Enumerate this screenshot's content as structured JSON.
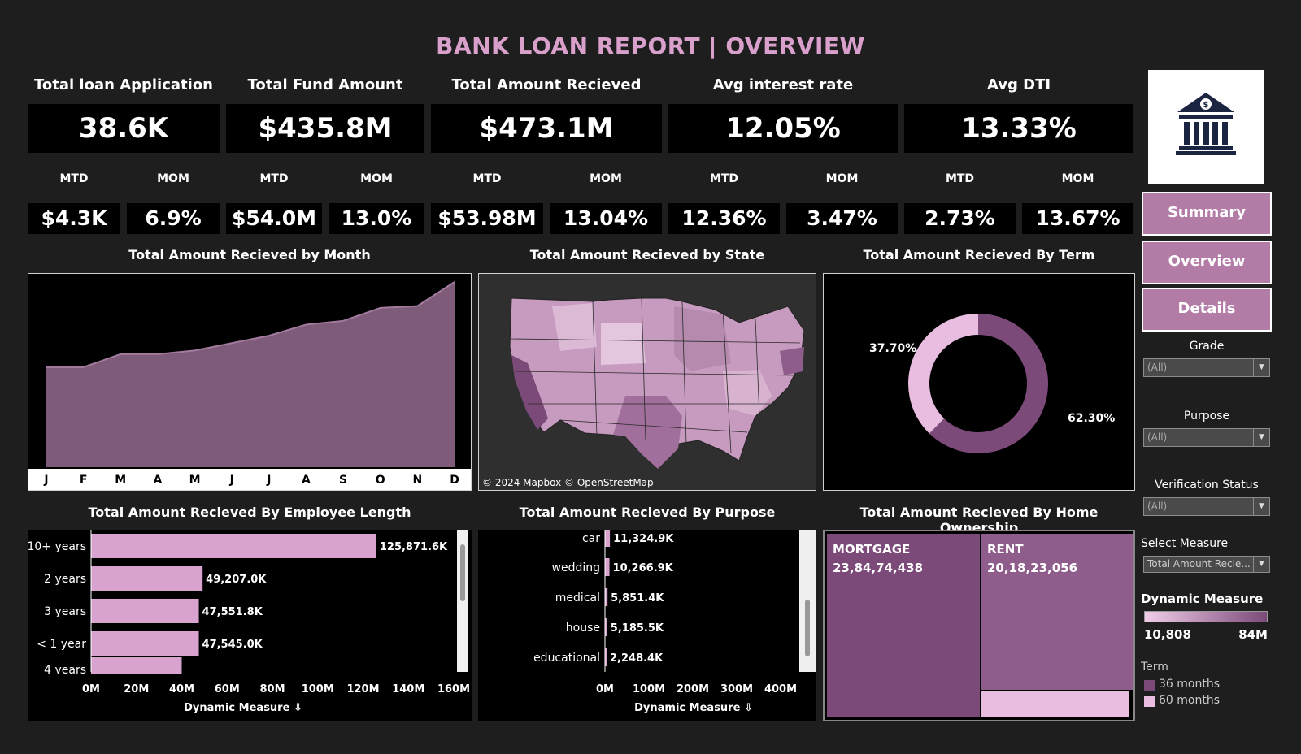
{
  "title": "BANK LOAN REPORT | OVERVIEW",
  "kpis": [
    {
      "label": "Total loan Application",
      "value": "38.6K",
      "mtd_label": "MTD",
      "mtd": "$4.3K",
      "mom_label": "MOM",
      "mom": "6.9%"
    },
    {
      "label": "Total Fund Amount",
      "value": "$435.8M",
      "mtd_label": "MTD",
      "mtd": "$54.0M",
      "mom_label": "MOM",
      "mom": "13.0%"
    },
    {
      "label": "Total Amount Recieved",
      "value": "$473.1M",
      "mtd_label": "MTD",
      "mtd": "$53.98M",
      "mom_label": "MOM",
      "mom": "13.04%"
    },
    {
      "label": "Avg interest rate",
      "value": "12.05%",
      "mtd_label": "MTD",
      "mtd": "12.36%",
      "mom_label": "MOM",
      "mom": "3.47%"
    },
    {
      "label": "Avg DTI",
      "value": "13.33%",
      "mtd_label": "MTD",
      "mtd": "2.73%",
      "mom_label": "MOM",
      "mom": "13.67%"
    }
  ],
  "logo_icon": "bank-icon",
  "nav": {
    "summary": "Summary",
    "overview": "Overview",
    "details": "Details"
  },
  "filters": {
    "grade": {
      "label": "Grade",
      "value": "(All)"
    },
    "purpose": {
      "label": "Purpose",
      "value": "(All)"
    },
    "verification": {
      "label": "Verification Status",
      "value": "(All)"
    },
    "measure": {
      "label": "Select Measure",
      "value": "Total Amount Recie..."
    }
  },
  "legend": {
    "dynamic_title": "Dynamic Measure",
    "min": "10,808",
    "max": "84M",
    "term_title": "Term",
    "term_36": "36 months",
    "term_60": "60 months",
    "color_36": "#7b4a79",
    "color_60": "#e8bde0"
  },
  "panels": {
    "month_title": "Total Amount Recieved by Month",
    "state_title": "Total Amount Recieved by State",
    "state_credit": "© 2024 Mapbox © OpenStreetMap",
    "term_title": "Total Amount Recieved By Term",
    "emp_title": "Total Amount Recieved By Employee Length",
    "purpose_title": "Total Amount Recieved By Purpose",
    "home_title": "Total Amount Recieved By Home Ownership",
    "dynamic_axis": "Dynamic Measure"
  },
  "chart_data": [
    {
      "type": "area",
      "title": "Total Amount Recieved by Month",
      "categories": [
        "J",
        "F",
        "M",
        "A",
        "M",
        "J",
        "J",
        "A",
        "S",
        "O",
        "N",
        "D"
      ],
      "values": [
        0.54,
        0.54,
        0.61,
        0.61,
        0.63,
        0.67,
        0.71,
        0.77,
        0.79,
        0.86,
        0.87,
        1.0
      ],
      "color": "#7d5b79"
    },
    {
      "type": "pie",
      "title": "Total Amount Recieved By Term",
      "slices": [
        {
          "label": "62.30%",
          "value": 62.3,
          "color": "#7b4a79"
        },
        {
          "label": "37.70%",
          "value": 37.7,
          "color": "#e8bde0"
        }
      ]
    },
    {
      "type": "bar",
      "title": "Total Amount Recieved By Employee Length",
      "categories": [
        "10+ years",
        "2 years",
        "3 years",
        "< 1 year",
        "4 years"
      ],
      "values": [
        125871.6,
        49207.0,
        47551.8,
        47545.0,
        40000
      ],
      "labels": [
        "125,871.6K",
        "49,207.0K",
        "47,551.8K",
        "47,545.0K",
        ""
      ],
      "xticks": [
        "0M",
        "20M",
        "40M",
        "60M",
        "80M",
        "100M",
        "120M",
        "140M",
        "160M"
      ],
      "xlim": [
        0,
        160000
      ],
      "xlabel": "Dynamic Measure"
    },
    {
      "type": "bar",
      "title": "Total Amount Recieved By Purpose",
      "categories": [
        "car",
        "wedding",
        "medical",
        "house",
        "educational"
      ],
      "values": [
        11324.9,
        10266.9,
        5851.4,
        5185.5,
        2248.4
      ],
      "labels": [
        "11,324.9K",
        "10,266.9K",
        "5,851.4K",
        "5,185.5K",
        "2,248.4K"
      ],
      "xticks": [
        "0M",
        "100M",
        "200M",
        "300M",
        "400M"
      ],
      "xlim": [
        0,
        430000
      ],
      "xlabel": "Dynamic Measure"
    },
    {
      "type": "heatmap",
      "title": "Total Amount Recieved By Home Ownership",
      "cells": [
        {
          "label": "MORTGAGE",
          "value": "23,84,74,438",
          "color": "#7b4a79"
        },
        {
          "label": "RENT",
          "value": "20,18,23,056",
          "color": "#8e5d8b"
        },
        {
          "label": "",
          "value": "",
          "color": "#e8bde0"
        }
      ]
    }
  ]
}
